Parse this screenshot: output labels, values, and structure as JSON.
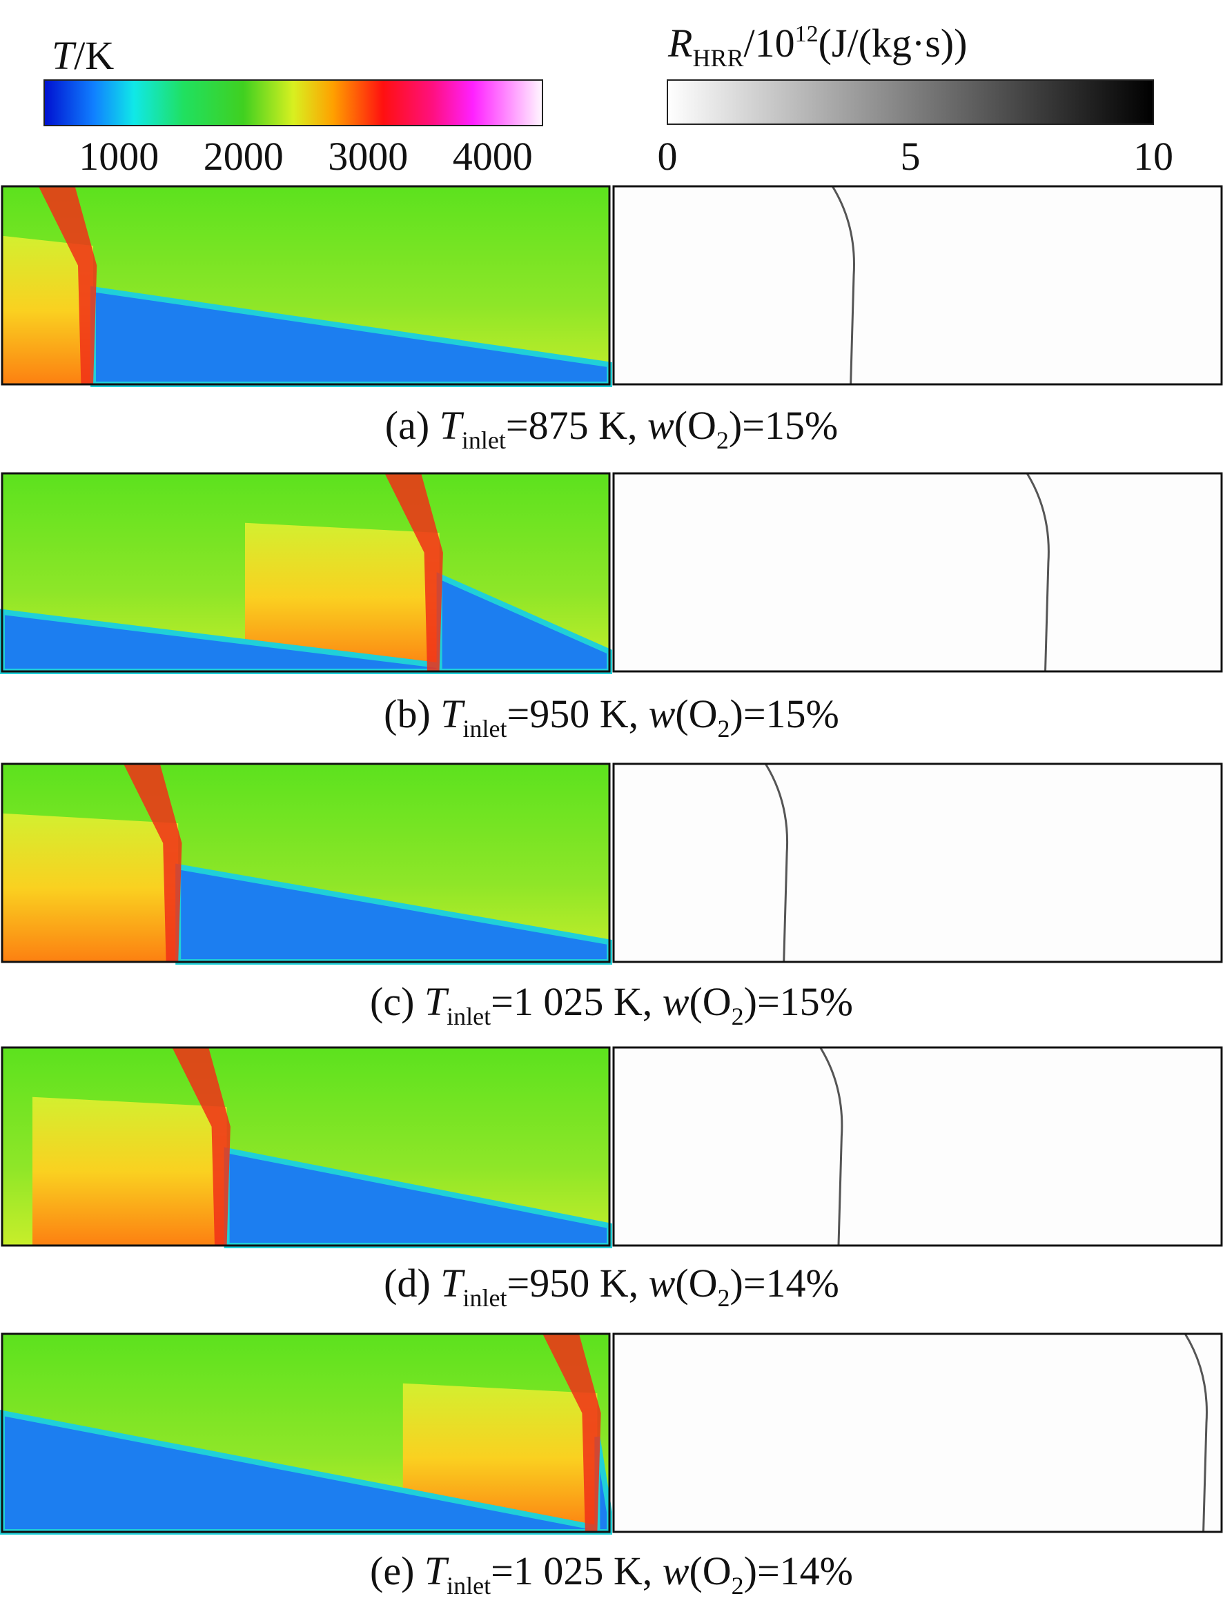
{
  "colorbars": [
    {
      "title": {
        "symbol": "T",
        "unit": "/K"
      },
      "range": [
        400,
        4400
      ],
      "ticks": [
        1000,
        2000,
        3000,
        4000
      ]
    },
    {
      "title": {
        "symbol": "R",
        "subscript": "HRR",
        "unit_prefix": "/10",
        "exponent": "12",
        "unit": "(J/(kg·s))"
      },
      "range": [
        0,
        10
      ],
      "ticks": [
        0,
        5,
        10
      ]
    }
  ],
  "panels": [
    {
      "label": "(a)",
      "variable": "T",
      "subscript": "inlet",
      "temperature": "=875 K,",
      "oxygen_symbol": "w",
      "oxygen_species": "(O",
      "oxygen_subscript": "2",
      "oxygen_value": ")=15%"
    },
    {
      "label": "(b)",
      "variable": "T",
      "subscript": "inlet",
      "temperature": "=950 K,",
      "oxygen_symbol": "w",
      "oxygen_species": "(O",
      "oxygen_subscript": "2",
      "oxygen_value": ")=15%"
    },
    {
      "label": "(c)",
      "variable": "T",
      "subscript": "inlet",
      "temperature": "=1 025 K,",
      "oxygen_symbol": "w",
      "oxygen_species": "(O",
      "oxygen_subscript": "2",
      "oxygen_value": ")=15%"
    },
    {
      "label": "(d)",
      "variable": "T",
      "subscript": "inlet",
      "temperature": "=950 K,",
      "oxygen_symbol": "w",
      "oxygen_species": "(O",
      "oxygen_subscript": "2",
      "oxygen_value": ")=14%"
    },
    {
      "label": "(e)",
      "variable": "T",
      "subscript": "inlet",
      "temperature": "=1 025 K,",
      "oxygen_symbol": "w",
      "oxygen_species": "(O",
      "oxygen_subscript": "2",
      "oxygen_value": ")=14%"
    }
  ]
}
